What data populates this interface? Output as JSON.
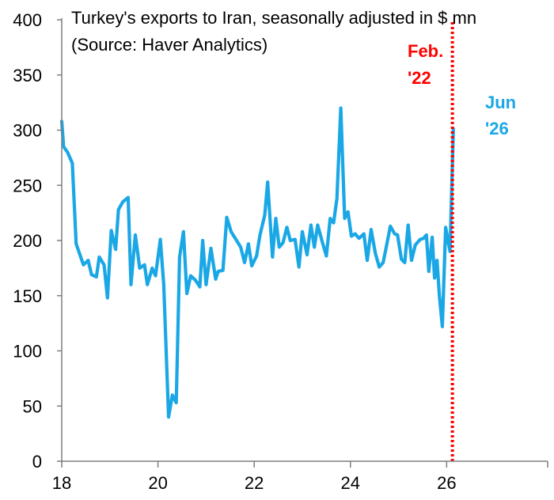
{
  "chart_data": {
    "type": "line",
    "title": "Turkey's exports to Iran, seasonally adjusted in $ mn",
    "subtitle": "(Source: Haver Analytics)",
    "xlim": [
      18,
      28.1
    ],
    "ylim": [
      0,
      400
    ],
    "x_ticks": [
      18,
      20,
      22,
      24,
      26
    ],
    "y_ticks": [
      0,
      50,
      100,
      150,
      200,
      250,
      300,
      350,
      400
    ],
    "grid": false,
    "series": [
      {
        "color": "#1aa7e6",
        "points": [
          [
            18.0,
            308
          ],
          [
            18.04,
            285
          ],
          [
            18.12,
            280
          ],
          [
            18.22,
            270
          ],
          [
            18.3,
            197
          ],
          [
            18.45,
            178
          ],
          [
            18.55,
            182
          ],
          [
            18.62,
            169
          ],
          [
            18.72,
            167
          ],
          [
            18.78,
            185
          ],
          [
            18.88,
            178
          ],
          [
            18.95,
            148
          ],
          [
            19.03,
            209
          ],
          [
            19.12,
            192
          ],
          [
            19.18,
            228
          ],
          [
            19.27,
            235
          ],
          [
            19.38,
            239
          ],
          [
            19.44,
            160
          ],
          [
            19.53,
            205
          ],
          [
            19.62,
            175
          ],
          [
            19.72,
            178
          ],
          [
            19.78,
            160
          ],
          [
            19.88,
            175
          ],
          [
            19.95,
            168
          ],
          [
            20.05,
            201
          ],
          [
            20.12,
            160
          ],
          [
            20.22,
            40
          ],
          [
            20.3,
            60
          ],
          [
            20.38,
            53
          ],
          [
            20.45,
            185
          ],
          [
            20.53,
            208
          ],
          [
            20.6,
            152
          ],
          [
            20.68,
            168
          ],
          [
            20.78,
            164
          ],
          [
            20.87,
            158
          ],
          [
            20.93,
            200
          ],
          [
            21.0,
            160
          ],
          [
            21.1,
            193
          ],
          [
            21.2,
            165
          ],
          [
            21.25,
            172
          ],
          [
            21.35,
            173
          ],
          [
            21.43,
            221
          ],
          [
            21.52,
            208
          ],
          [
            21.62,
            201
          ],
          [
            21.72,
            194
          ],
          [
            21.8,
            180
          ],
          [
            21.88,
            197
          ],
          [
            21.95,
            177
          ],
          [
            22.05,
            186
          ],
          [
            22.12,
            205
          ],
          [
            22.22,
            223
          ],
          [
            22.28,
            253
          ],
          [
            22.38,
            185
          ],
          [
            22.45,
            220
          ],
          [
            22.52,
            194
          ],
          [
            22.6,
            198
          ],
          [
            22.68,
            212
          ],
          [
            22.75,
            200
          ],
          [
            22.85,
            201
          ],
          [
            22.93,
            176
          ],
          [
            23.0,
            208
          ],
          [
            23.1,
            187
          ],
          [
            23.18,
            214
          ],
          [
            23.25,
            194
          ],
          [
            23.32,
            214
          ],
          [
            23.42,
            198
          ],
          [
            23.5,
            186
          ],
          [
            23.58,
            220
          ],
          [
            23.65,
            216
          ],
          [
            23.72,
            238
          ],
          [
            23.8,
            320
          ],
          [
            23.88,
            220
          ],
          [
            23.95,
            226
          ],
          [
            24.02,
            204
          ],
          [
            24.1,
            206
          ],
          [
            24.18,
            202
          ],
          [
            24.28,
            206
          ],
          [
            24.35,
            182
          ],
          [
            24.43,
            210
          ],
          [
            24.52,
            188
          ],
          [
            24.6,
            176
          ],
          [
            24.68,
            180
          ],
          [
            24.75,
            195
          ],
          [
            24.83,
            213
          ],
          [
            24.92,
            206
          ],
          [
            24.98,
            205
          ],
          [
            25.06,
            183
          ],
          [
            25.13,
            180
          ],
          [
            25.2,
            214
          ],
          [
            25.27,
            182
          ],
          [
            25.35,
            196
          ],
          [
            25.45,
            201
          ],
          [
            25.52,
            202
          ],
          [
            25.58,
            205
          ],
          [
            25.63,
            172
          ],
          [
            25.7,
            203
          ],
          [
            25.75,
            166
          ],
          [
            25.8,
            182
          ],
          [
            25.85,
            150
          ],
          [
            25.91,
            122
          ],
          [
            25.98,
            212
          ],
          [
            26.07,
            190
          ],
          [
            26.14,
            301
          ]
        ]
      }
    ],
    "annotations": [
      {
        "lines": [
          "Feb.",
          "'22"
        ],
        "color": "#ff0000"
      },
      {
        "lines": [
          "Jun",
          "'26"
        ],
        "color": "#1aa7e6"
      }
    ],
    "vline": {
      "x": 26.12,
      "style": "dotted",
      "color": "#ff0000"
    }
  }
}
